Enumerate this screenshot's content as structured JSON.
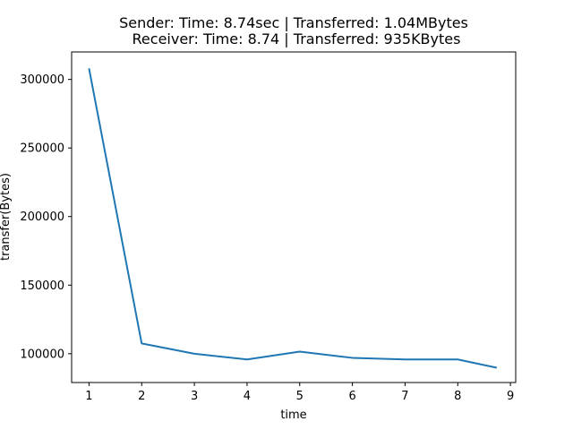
{
  "chart_data": {
    "type": "line",
    "title": "Sender: Time: 8.74sec | Transferred: 1.04MBytes\nReceiver: Time: 8.74 | Transferred: 935KBytes",
    "title_lines": [
      "Sender: Time: 8.74sec | Transferred: 1.04MBytes",
      "Receiver: Time: 8.74 | Transferred: 935KBytes"
    ],
    "xlabel": "time",
    "ylabel": "transfer(Bytes)",
    "xlim": [
      0.67,
      9.1
    ],
    "ylim": [
      79000,
      320000
    ],
    "x_ticks": [
      1,
      2,
      3,
      4,
      5,
      6,
      7,
      8,
      9
    ],
    "x_tick_labels": [
      "1",
      "2",
      "3",
      "4",
      "5",
      "6",
      "7",
      "8",
      "9"
    ],
    "y_ticks": [
      100000,
      150000,
      200000,
      250000,
      300000
    ],
    "y_tick_labels": [
      "100000",
      "150000",
      "200000",
      "250000",
      "300000"
    ],
    "grid": false,
    "legend": "none",
    "series": [
      {
        "color": "#1f77b4",
        "x": [
          1,
          2,
          3,
          4,
          5,
          6,
          7,
          8,
          8.74
        ],
        "y": [
          308000,
          107500,
          100000,
          95800,
          101500,
          97000,
          95800,
          95800,
          89800
        ]
      }
    ]
  }
}
